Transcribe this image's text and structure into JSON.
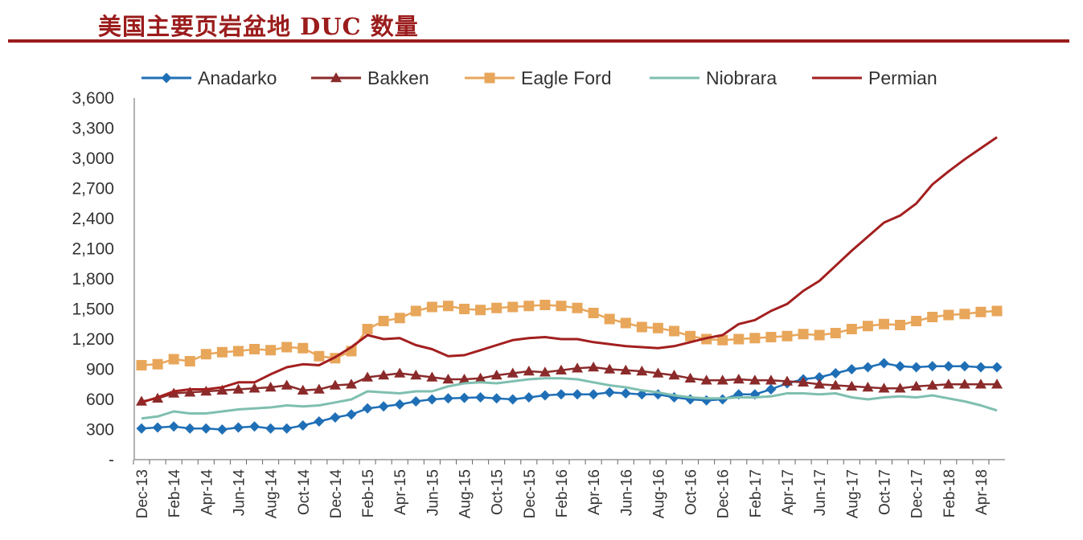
{
  "header": {
    "title": "美国主要页岩盆地 DUC 数量"
  },
  "chart_data": {
    "type": "line",
    "title": "美国主要页岩盆地 DUC 数量",
    "xlabel": "",
    "ylabel": "",
    "ylim": [
      0,
      3600
    ],
    "yticks": [
      0,
      300,
      600,
      900,
      1200,
      1500,
      1800,
      2100,
      2400,
      2700,
      3000,
      3300,
      3600
    ],
    "ytick_labels": [
      "-",
      "300",
      "600",
      "900",
      "1,200",
      "1,500",
      "1,800",
      "2,100",
      "2,400",
      "2,700",
      "3,000",
      "3,300",
      "3,600"
    ],
    "tick_every": 2,
    "categories": [
      "Dec-13",
      "Jan-14",
      "Feb-14",
      "Mar-14",
      "Apr-14",
      "May-14",
      "Jun-14",
      "Jul-14",
      "Aug-14",
      "Sep-14",
      "Oct-14",
      "Nov-14",
      "Dec-14",
      "Jan-15",
      "Feb-15",
      "Mar-15",
      "Apr-15",
      "May-15",
      "Jun-15",
      "Jul-15",
      "Aug-15",
      "Sep-15",
      "Oct-15",
      "Nov-15",
      "Dec-15",
      "Jan-16",
      "Feb-16",
      "Mar-16",
      "Apr-16",
      "May-16",
      "Jun-16",
      "Jul-16",
      "Aug-16",
      "Sep-16",
      "Oct-16",
      "Nov-16",
      "Dec-16",
      "Jan-17",
      "Feb-17",
      "Mar-17",
      "Apr-17",
      "May-17",
      "Jun-17",
      "Jul-17",
      "Aug-17",
      "Sep-17",
      "Oct-17",
      "Nov-17",
      "Dec-17",
      "Jan-18",
      "Feb-18",
      "Mar-18",
      "Apr-18",
      "May-18"
    ],
    "legend_position": "top",
    "series": [
      {
        "name": "Anadarko",
        "color": "#1f6fb6",
        "marker": "diamond",
        "values": [
          310,
          320,
          330,
          310,
          310,
          300,
          320,
          330,
          310,
          310,
          340,
          380,
          420,
          450,
          510,
          530,
          550,
          580,
          600,
          610,
          615,
          620,
          610,
          600,
          620,
          640,
          650,
          650,
          650,
          670,
          660,
          650,
          650,
          620,
          600,
          590,
          600,
          650,
          650,
          700,
          760,
          800,
          820,
          860,
          900,
          920,
          960,
          930,
          920,
          930,
          930,
          930,
          920,
          920
        ]
      },
      {
        "name": "Bakken",
        "color": "#8b2a2a",
        "marker": "triangle",
        "values": [
          580,
          610,
          660,
          670,
          680,
          690,
          700,
          710,
          720,
          740,
          690,
          700,
          740,
          750,
          820,
          840,
          860,
          840,
          820,
          800,
          800,
          810,
          840,
          860,
          880,
          870,
          890,
          910,
          920,
          900,
          890,
          880,
          860,
          840,
          810,
          790,
          790,
          800,
          790,
          790,
          780,
          770,
          750,
          740,
          730,
          720,
          710,
          710,
          730,
          740,
          750,
          750,
          750,
          750
        ]
      },
      {
        "name": "Eagle Ford",
        "color": "#e8a65a",
        "marker": "square",
        "values": [
          940,
          950,
          1000,
          980,
          1050,
          1070,
          1080,
          1100,
          1090,
          1120,
          1110,
          1030,
          1010,
          1080,
          1300,
          1380,
          1410,
          1480,
          1520,
          1530,
          1500,
          1490,
          1510,
          1520,
          1530,
          1540,
          1530,
          1510,
          1460,
          1400,
          1360,
          1320,
          1310,
          1280,
          1230,
          1200,
          1190,
          1200,
          1210,
          1220,
          1230,
          1250,
          1240,
          1260,
          1300,
          1330,
          1350,
          1340,
          1380,
          1420,
          1440,
          1450,
          1470,
          1480
        ]
      },
      {
        "name": "Niobrara",
        "color": "#7fbfb0",
        "marker": "none",
        "values": [
          410,
          430,
          480,
          460,
          460,
          480,
          500,
          510,
          520,
          540,
          530,
          540,
          570,
          600,
          680,
          670,
          660,
          680,
          680,
          730,
          760,
          770,
          760,
          780,
          800,
          810,
          810,
          800,
          770,
          740,
          720,
          690,
          670,
          640,
          620,
          610,
          610,
          620,
          620,
          630,
          660,
          660,
          650,
          660,
          620,
          600,
          620,
          630,
          620,
          640,
          610,
          580,
          540,
          490
        ]
      },
      {
        "name": "Permian",
        "color": "#a31f1f",
        "marker": "none",
        "values": [
          570,
          620,
          680,
          700,
          700,
          720,
          770,
          770,
          850,
          920,
          950,
          940,
          1020,
          1120,
          1240,
          1200,
          1210,
          1140,
          1100,
          1030,
          1040,
          1090,
          1140,
          1190,
          1210,
          1220,
          1200,
          1200,
          1170,
          1150,
          1130,
          1120,
          1110,
          1130,
          1170,
          1210,
          1240,
          1350,
          1390,
          1480,
          1550,
          1680,
          1780,
          1930,
          2080,
          2220,
          2360,
          2430,
          2550,
          2740,
          2870,
          2990,
          3100,
          3210
        ]
      }
    ]
  }
}
